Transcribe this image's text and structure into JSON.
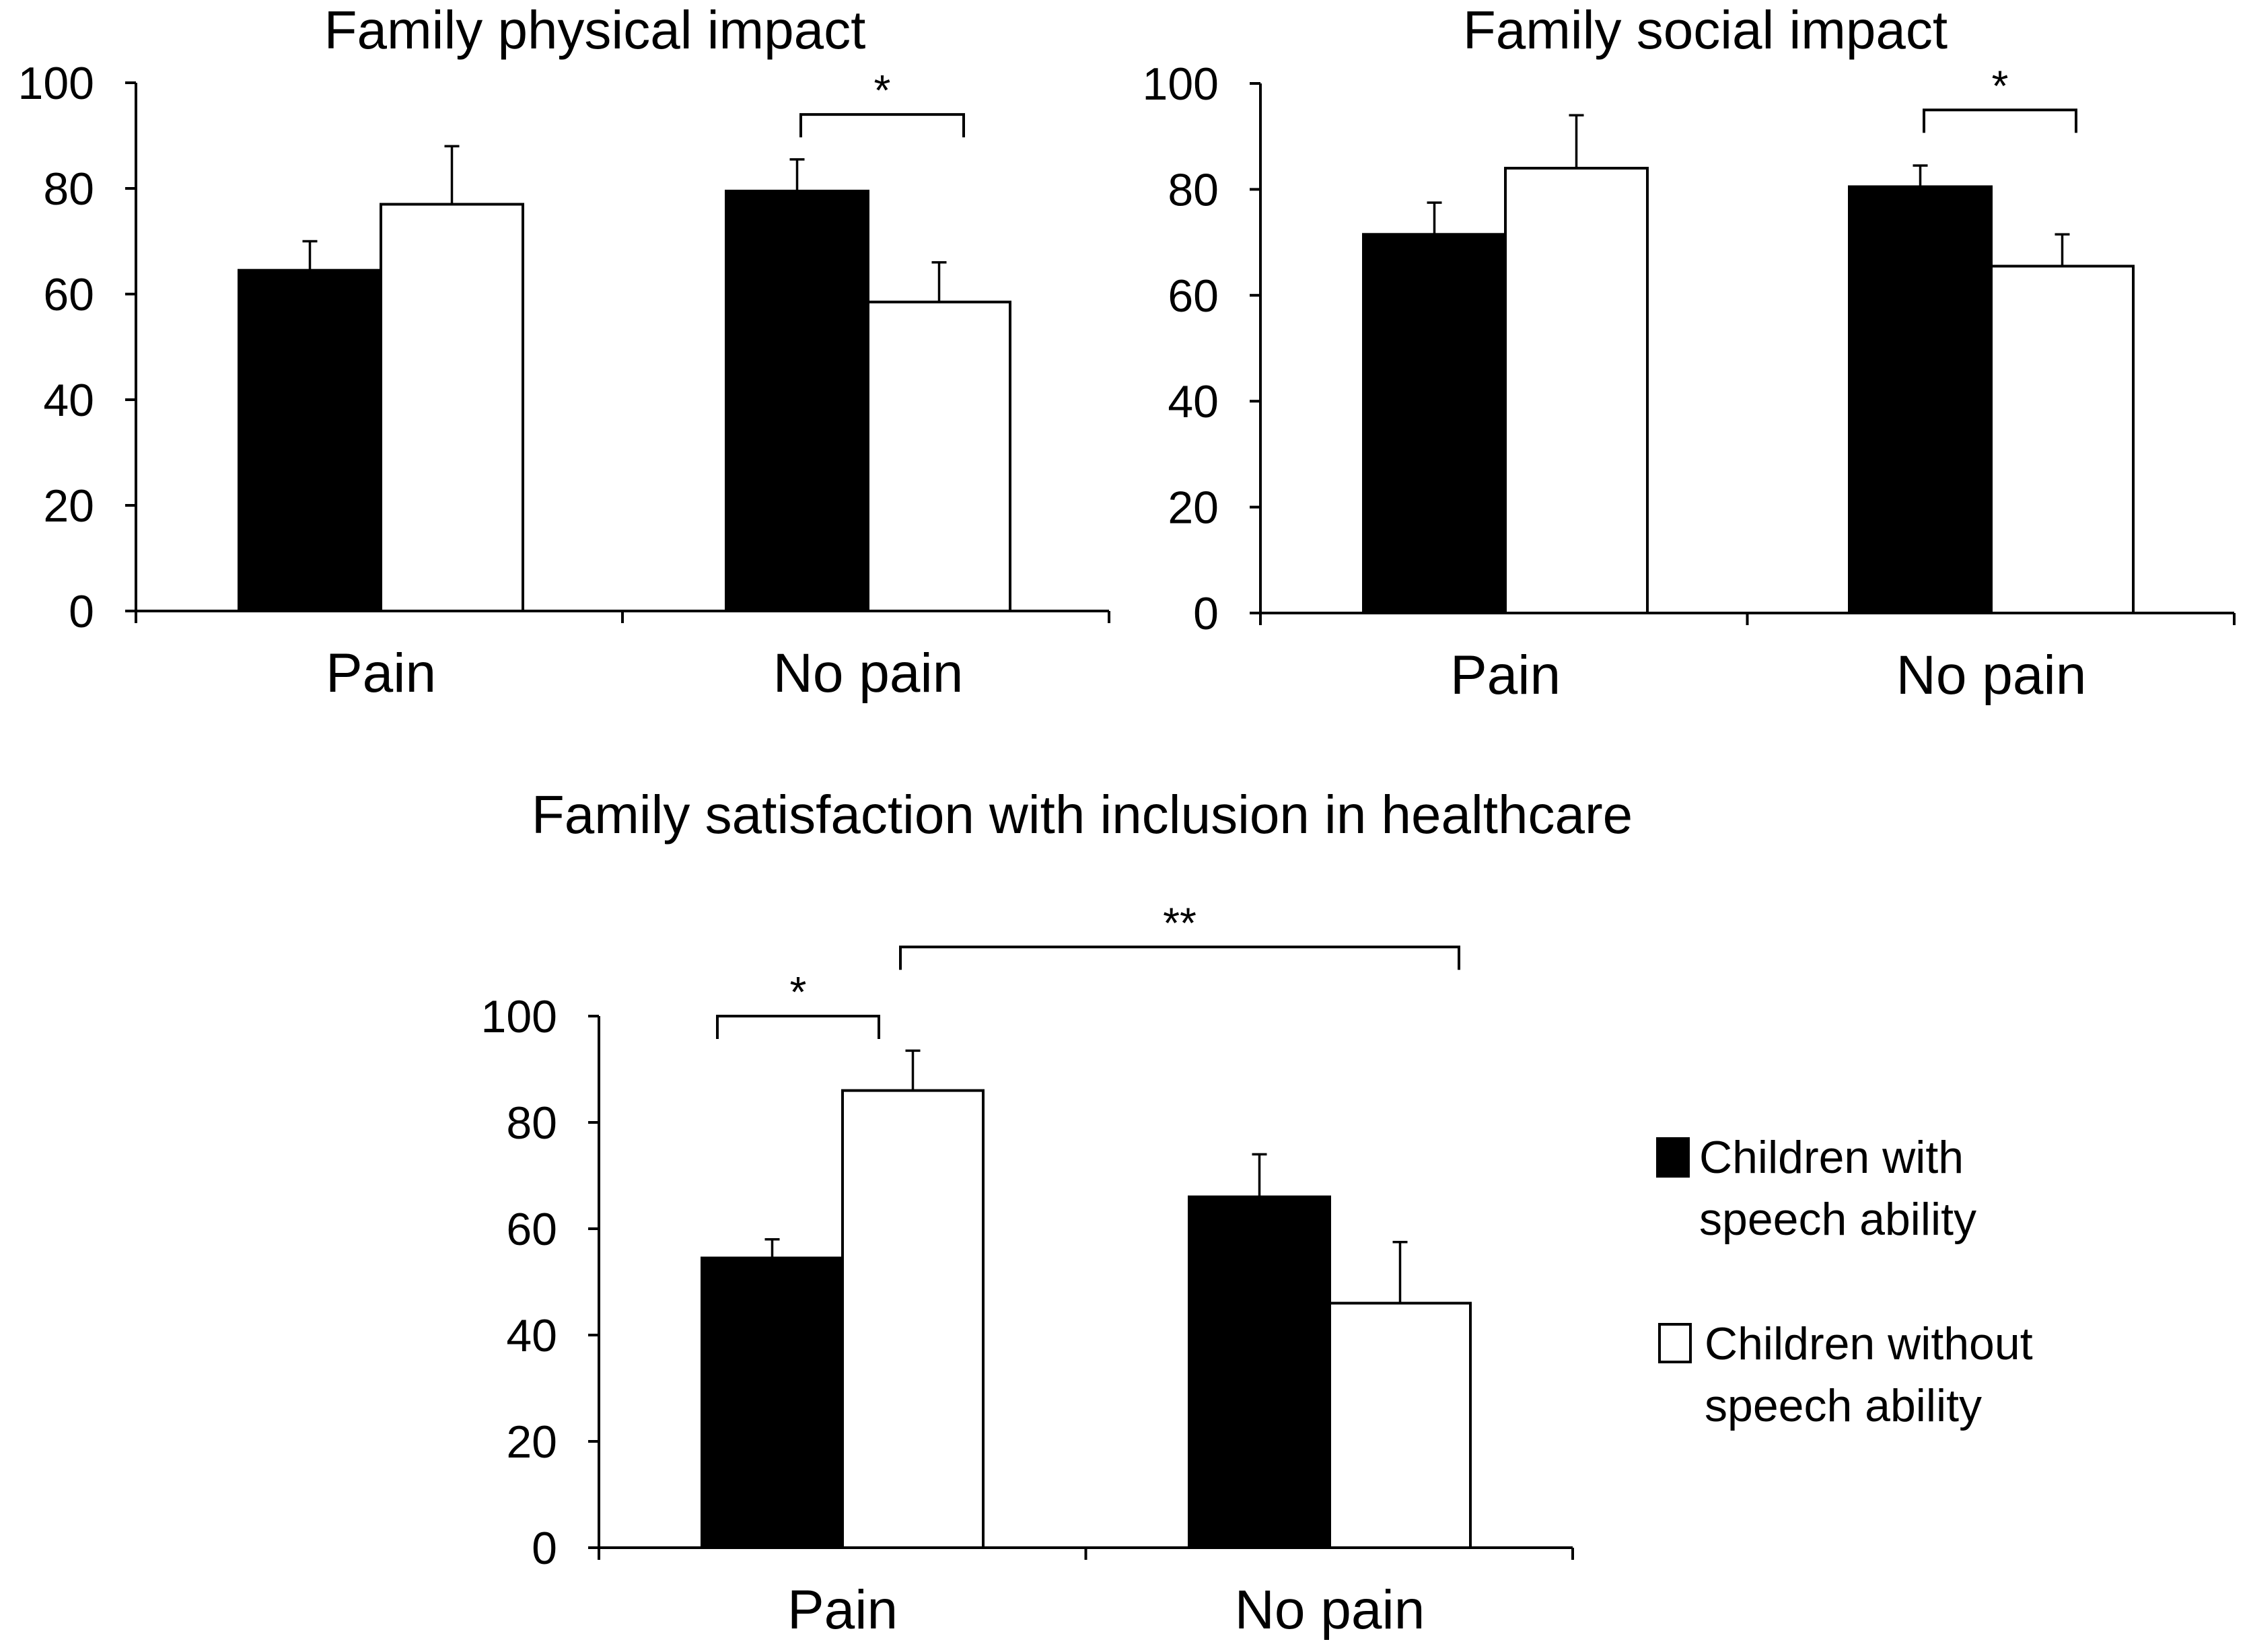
{
  "chart_data": [
    {
      "type": "bar",
      "title": "Family physical impact",
      "categories": [
        "Pain",
        "No pain"
      ],
      "series": [
        {
          "name": "Children with speech ability",
          "values": [
            64.5,
            79.5
          ],
          "errors": [
            5.5,
            6.0
          ]
        },
        {
          "name": "Children without speech ability",
          "values": [
            77,
            58.5
          ],
          "errors": [
            11.0,
            7.5
          ]
        }
      ],
      "ylim": [
        0,
        100
      ],
      "yticks": [
        0,
        20,
        40,
        60,
        80,
        100
      ],
      "significance": [
        {
          "label": "*",
          "between": "No pain: with vs without speech ability",
          "y": 94
        }
      ]
    },
    {
      "type": "bar",
      "title": "Family social impact",
      "categories": [
        "Pain",
        "No pain"
      ],
      "series": [
        {
          "name": "Children with speech ability",
          "values": [
            71.5,
            80.5
          ],
          "errors": [
            6.0,
            4.0
          ]
        },
        {
          "name": "Children without speech ability",
          "values": [
            84,
            65.5
          ],
          "errors": [
            10.0,
            6.0
          ]
        }
      ],
      "ylim": [
        0,
        100
      ],
      "yticks": [
        0,
        20,
        40,
        60,
        80,
        100
      ],
      "significance": [
        {
          "label": "*",
          "between": "No pain: with vs without speech ability",
          "y": 95
        }
      ]
    },
    {
      "type": "bar",
      "title": "Family satisfaction with inclusion in healthcare",
      "categories": [
        "Pain",
        "No pain"
      ],
      "series": [
        {
          "name": "Children with speech ability",
          "values": [
            54.5,
            66
          ],
          "errors": [
            3.5,
            8.0
          ]
        },
        {
          "name": "Children without speech ability",
          "values": [
            86,
            46
          ],
          "errors": [
            7.5,
            11.5
          ]
        }
      ],
      "ylim": [
        0,
        100
      ],
      "yticks": [
        0,
        20,
        40,
        60,
        80,
        100
      ],
      "significance": [
        {
          "label": "*",
          "between": "Pain: with vs without speech ability",
          "y": 100
        },
        {
          "label": "**",
          "between": "Pain without speech ability vs No pain without speech ability",
          "y": 113
        }
      ]
    }
  ],
  "legend": {
    "items": [
      {
        "lines": [
          "Children with",
          "speech ability"
        ],
        "fill": "#000000"
      },
      {
        "lines": [
          "Children without",
          "speech ability"
        ],
        "fill": "#ffffff"
      }
    ]
  },
  "colors": {
    "with_speech": "#000000",
    "without_speech": "#ffffff",
    "axis": "#000000"
  }
}
